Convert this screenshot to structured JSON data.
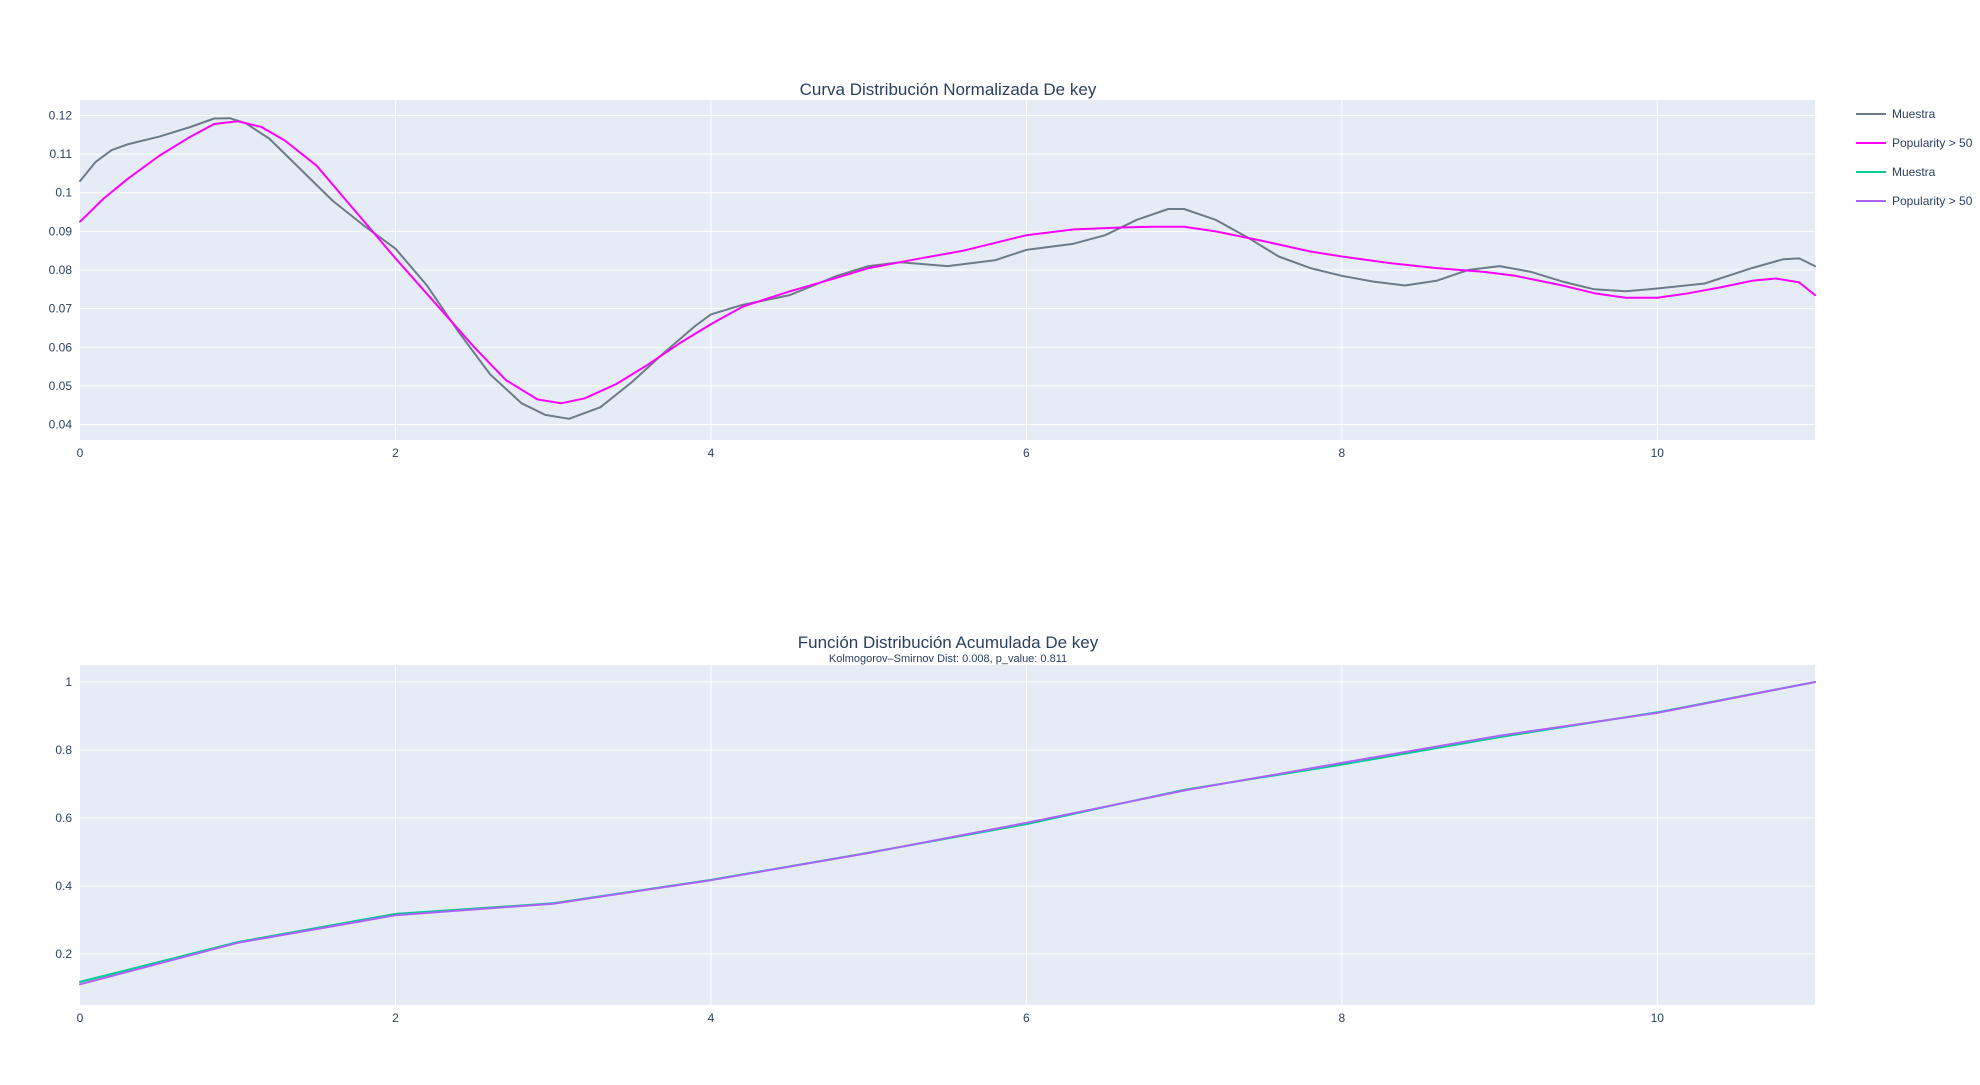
{
  "chart_data": [
    {
      "type": "line",
      "title": "Curva Distribución Normalizada De key",
      "xlim": [
        0,
        11
      ],
      "ylim": [
        0.036,
        0.124
      ],
      "xticks": [
        0,
        2,
        4,
        6,
        8,
        10
      ],
      "yticks": [
        0.04,
        0.05,
        0.06,
        0.07,
        0.08,
        0.09,
        0.1,
        0.11,
        0.12
      ],
      "ytick_labels": [
        "0.04",
        "0.05",
        "0.06",
        "0.07",
        "0.08",
        "0.09",
        "0.1",
        "0.11",
        "0.12"
      ],
      "grid": true,
      "series": [
        {
          "name": "Muestra",
          "color": "#6c7a89",
          "x": [
            0,
            0.1,
            0.2,
            0.3,
            0.5,
            0.7,
            0.85,
            0.95,
            1.05,
            1.2,
            1.4,
            1.6,
            1.8,
            2.0,
            2.2,
            2.4,
            2.6,
            2.8,
            2.95,
            3.1,
            3.3,
            3.5,
            3.7,
            3.9,
            4.0,
            4.2,
            4.5,
            4.8,
            5.0,
            5.2,
            5.5,
            5.8,
            6.0,
            6.3,
            6.5,
            6.7,
            6.9,
            7.0,
            7.2,
            7.4,
            7.6,
            7.8,
            8.0,
            8.2,
            8.4,
            8.6,
            8.8,
            9.0,
            9.2,
            9.4,
            9.6,
            9.8,
            10.0,
            10.3,
            10.6,
            10.8,
            10.9,
            11.0
          ],
          "y": [
            0.103,
            0.108,
            0.111,
            0.1125,
            0.1145,
            0.117,
            0.1192,
            0.1193,
            0.118,
            0.114,
            0.106,
            0.098,
            0.0915,
            0.0855,
            0.076,
            0.064,
            0.053,
            0.0455,
            0.0425,
            0.0415,
            0.0445,
            0.051,
            0.0585,
            0.0655,
            0.0685,
            0.071,
            0.0735,
            0.0785,
            0.081,
            0.082,
            0.081,
            0.0825,
            0.0852,
            0.0868,
            0.089,
            0.093,
            0.0958,
            0.0958,
            0.093,
            0.0885,
            0.0835,
            0.0805,
            0.0785,
            0.077,
            0.076,
            0.0772,
            0.08,
            0.081,
            0.0795,
            0.077,
            0.075,
            0.0745,
            0.0752,
            0.0765,
            0.0805,
            0.0828,
            0.083,
            0.081
          ]
        },
        {
          "name": "Popularity > 50",
          "color": "#ff00ff",
          "x": [
            0,
            0.15,
            0.3,
            0.5,
            0.7,
            0.85,
            1.0,
            1.15,
            1.3,
            1.5,
            1.75,
            2.0,
            2.25,
            2.5,
            2.7,
            2.9,
            3.05,
            3.2,
            3.4,
            3.6,
            3.8,
            4.0,
            4.2,
            4.5,
            4.8,
            5.0,
            5.3,
            5.6,
            6.0,
            6.3,
            6.6,
            6.8,
            7.0,
            7.2,
            7.5,
            7.8,
            8.0,
            8.3,
            8.6,
            8.9,
            9.1,
            9.4,
            9.6,
            9.8,
            10.0,
            10.2,
            10.4,
            10.6,
            10.75,
            10.9,
            11.0
          ],
          "y": [
            0.0925,
            0.0985,
            0.1035,
            0.1095,
            0.1145,
            0.1178,
            0.1185,
            0.117,
            0.1135,
            0.107,
            0.095,
            0.083,
            0.0715,
            0.06,
            0.0515,
            0.0465,
            0.0455,
            0.0468,
            0.0505,
            0.0555,
            0.061,
            0.066,
            0.0705,
            0.0745,
            0.078,
            0.0805,
            0.0828,
            0.085,
            0.089,
            0.0905,
            0.091,
            0.0912,
            0.0912,
            0.09,
            0.0875,
            0.0848,
            0.0835,
            0.0818,
            0.0805,
            0.0795,
            0.0785,
            0.076,
            0.074,
            0.0728,
            0.0728,
            0.074,
            0.0755,
            0.0772,
            0.0778,
            0.0768,
            0.0735
          ]
        }
      ],
      "legend": [
        {
          "name": "Muestra",
          "color": "#6c7a89"
        },
        {
          "name": "Popularity > 50",
          "color": "#ff00ff"
        },
        {
          "name": "Muestra",
          "color": "#00cc96"
        },
        {
          "name": "Popularity > 50",
          "color": "#ab63fa"
        }
      ],
      "legend_position": "top-right"
    },
    {
      "type": "line",
      "title": "Función Distribución Acumulada De key",
      "subtitle": "Kolmogorov–Smirnov Dist: 0.008, p_value:  0.811",
      "xlim": [
        0,
        11
      ],
      "ylim": [
        0.05,
        1.05
      ],
      "xticks": [
        0,
        2,
        4,
        6,
        8,
        10
      ],
      "yticks": [
        0.2,
        0.4,
        0.6,
        0.8,
        1
      ],
      "ytick_labels": [
        "0.2",
        "0.4",
        "0.6",
        "0.8",
        "1"
      ],
      "grid": true,
      "series": [
        {
          "name": "Muestra",
          "color": "#00cc96",
          "x": [
            0,
            1,
            2,
            3,
            4,
            5,
            6,
            7,
            8,
            9,
            10,
            11
          ],
          "y": [
            0.118,
            0.235,
            0.318,
            0.349,
            0.418,
            0.498,
            0.582,
            0.683,
            0.757,
            0.838,
            0.911,
            1.0
          ]
        },
        {
          "name": "Popularity > 50",
          "color": "#ab63fa",
          "x": [
            0,
            1,
            2,
            3,
            4,
            5,
            6,
            7,
            8,
            9,
            10,
            11
          ],
          "y": [
            0.111,
            0.233,
            0.314,
            0.348,
            0.417,
            0.497,
            0.586,
            0.681,
            0.762,
            0.842,
            0.909,
            1.0
          ]
        }
      ]
    }
  ]
}
